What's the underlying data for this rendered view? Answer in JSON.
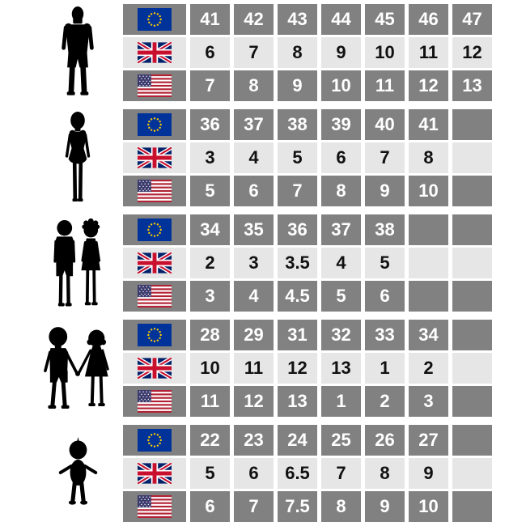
{
  "chart_data": {
    "type": "table",
    "groups": [
      {
        "category": "men",
        "eu": [
          41,
          42,
          43,
          44,
          45,
          46,
          47
        ],
        "uk": [
          6,
          7,
          8,
          9,
          10,
          11,
          12
        ],
        "us": [
          7,
          8,
          9,
          10,
          11,
          12,
          13
        ]
      },
      {
        "category": "women",
        "eu": [
          36,
          37,
          38,
          39,
          40,
          41
        ],
        "uk": [
          3,
          4,
          5,
          6,
          7,
          8
        ],
        "us": [
          5,
          6,
          7,
          8,
          9,
          10
        ]
      },
      {
        "category": "children",
        "eu": [
          34,
          35,
          36,
          37,
          38
        ],
        "uk": [
          2,
          3,
          3.5,
          4,
          5
        ],
        "us": [
          3,
          4,
          4.5,
          5,
          6
        ]
      },
      {
        "category": "kids",
        "eu": [
          28,
          29,
          31,
          32,
          33,
          34
        ],
        "uk": [
          10,
          11,
          12,
          13,
          1,
          2
        ],
        "us": [
          11,
          12,
          13,
          1,
          2,
          3
        ]
      },
      {
        "category": "toddlers",
        "eu": [
          22,
          23,
          24,
          25,
          26,
          27
        ],
        "uk": [
          5,
          6,
          6.5,
          7,
          8,
          9
        ],
        "us": [
          6,
          7,
          7.5,
          8,
          9,
          10
        ]
      }
    ]
  },
  "colors": {
    "cell_dark": "#818181",
    "cell_light": "#e6e6e6",
    "text_on_dark": "#ffffff",
    "text_on_light": "#111111",
    "background": "#ffffff",
    "silhouette": "#000000",
    "eu_flag_blue": "#003399",
    "eu_flag_star_yellow": "#ffcc00",
    "uk_flag_blue": "#012169",
    "uk_flag_red": "#c8102e",
    "us_flag_red": "#b22234",
    "us_flag_blue": "#3c3b6e"
  },
  "table": {
    "groups": [
      {
        "silhouette": "man",
        "rows": [
          {
            "region": "eu",
            "values": [
              "41",
              "42",
              "43",
              "44",
              "45",
              "46",
              "47"
            ]
          },
          {
            "region": "uk",
            "values": [
              "6",
              "7",
              "8",
              "9",
              "10",
              "11",
              "12"
            ]
          },
          {
            "region": "us",
            "values": [
              "7",
              "8",
              "9",
              "10",
              "11",
              "12",
              "13"
            ]
          }
        ]
      },
      {
        "silhouette": "woman",
        "rows": [
          {
            "region": "eu",
            "values": [
              "36",
              "37",
              "38",
              "39",
              "40",
              "41",
              ""
            ]
          },
          {
            "region": "uk",
            "values": [
              "3",
              "4",
              "5",
              "6",
              "7",
              "8",
              ""
            ]
          },
          {
            "region": "us",
            "values": [
              "5",
              "6",
              "7",
              "8",
              "9",
              "10",
              ""
            ]
          }
        ]
      },
      {
        "silhouette": "children",
        "rows": [
          {
            "region": "eu",
            "values": [
              "34",
              "35",
              "36",
              "37",
              "38",
              "",
              ""
            ]
          },
          {
            "region": "uk",
            "values": [
              "2",
              "3",
              "3.5",
              "4",
              "5",
              "",
              ""
            ]
          },
          {
            "region": "us",
            "values": [
              "3",
              "4",
              "4.5",
              "5",
              "6",
              "",
              ""
            ]
          }
        ]
      },
      {
        "silhouette": "kids",
        "rows": [
          {
            "region": "eu",
            "values": [
              "28",
              "29",
              "31",
              "32",
              "33",
              "34",
              ""
            ]
          },
          {
            "region": "uk",
            "values": [
              "10",
              "11",
              "12",
              "13",
              "1",
              "2",
              ""
            ]
          },
          {
            "region": "us",
            "values": [
              "11",
              "12",
              "13",
              "1",
              "2",
              "3",
              ""
            ]
          }
        ]
      },
      {
        "silhouette": "toddler",
        "rows": [
          {
            "region": "eu",
            "values": [
              "22",
              "23",
              "24",
              "25",
              "26",
              "27",
              ""
            ]
          },
          {
            "region": "uk",
            "values": [
              "5",
              "6",
              "6.5",
              "7",
              "8",
              "9",
              ""
            ]
          },
          {
            "region": "us",
            "values": [
              "6",
              "7",
              "7.5",
              "8",
              "9",
              "10",
              ""
            ]
          }
        ]
      }
    ]
  }
}
